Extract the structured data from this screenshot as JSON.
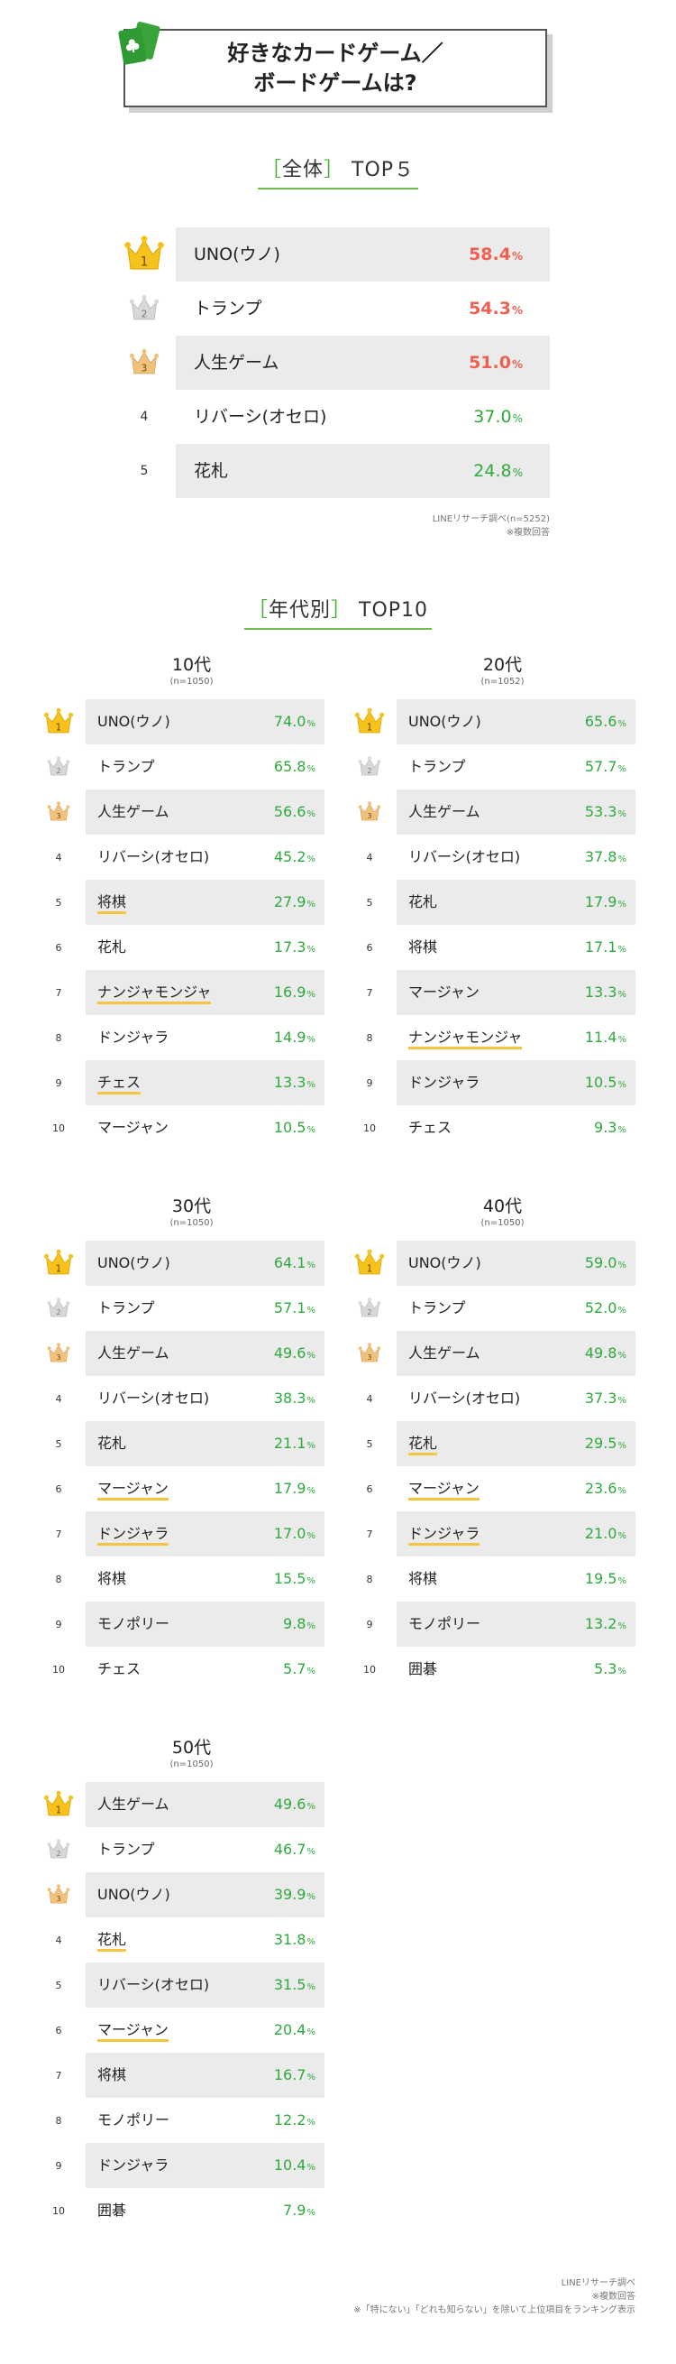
{
  "title": {
    "line1": "好きなカードゲーム／",
    "line2": "ボードゲームは?"
  },
  "colors": {
    "accent_green": "#43b02a",
    "highlight_red": "#f06050",
    "underline_yellow": "#f4c542",
    "row_gray": "#ebebeb"
  },
  "overall": {
    "heading_bracket_open": "［",
    "heading_label": "全体",
    "heading_bracket_close": "］",
    "heading_suffix": "TOP５",
    "note_source": "LINEリサーチ調べ(n=5252)",
    "note_multi": "※複数回答"
  },
  "by_age": {
    "heading_bracket_open": "［",
    "heading_label": "年代別",
    "heading_bracket_close": "］",
    "heading_suffix": "TOP10"
  },
  "footer": {
    "source": "LINEリサーチ調べ",
    "multi": "※複数回答",
    "exclusion": "※「特にない」「どれも知らない」を除いて上位項目をランキング表示"
  },
  "chart_data": [
    {
      "type": "table",
      "title": "全体 TOP５",
      "unit": "%",
      "ranks": [
        "1",
        "2",
        "3",
        "4",
        "5"
      ],
      "categories": [
        "UNO(ウノ)",
        "トランプ",
        "人生ゲーム",
        "リバーシ(オセロ)",
        "花札"
      ],
      "values": [
        58.4,
        54.3,
        51.0,
        37.0,
        24.8
      ],
      "values_text": [
        "58.4",
        "54.3",
        "51.0",
        "37.0",
        "24.8"
      ]
    },
    {
      "type": "table",
      "title": "10代",
      "n": "(n=1050)",
      "unit": "%",
      "ranks": [
        "1",
        "2",
        "3",
        "4",
        "5",
        "6",
        "7",
        "8",
        "9",
        "10"
      ],
      "categories": [
        "UNO(ウノ)",
        "トランプ",
        "人生ゲーム",
        "リバーシ(オセロ)",
        "将棋",
        "花札",
        "ナンジャモンジャ",
        "ドンジャラ",
        "チェス",
        "マージャン"
      ],
      "values": [
        74.0,
        65.8,
        56.6,
        45.2,
        27.9,
        17.3,
        16.9,
        14.9,
        13.3,
        10.5
      ],
      "values_text": [
        "74.0",
        "65.8",
        "56.6",
        "45.2",
        "27.9",
        "17.3",
        "16.9",
        "14.9",
        "13.3",
        "10.5"
      ],
      "underlined": [
        false,
        false,
        false,
        false,
        true,
        false,
        true,
        false,
        true,
        false
      ]
    },
    {
      "type": "table",
      "title": "20代",
      "n": "(n=1052)",
      "unit": "%",
      "ranks": [
        "1",
        "2",
        "3",
        "4",
        "5",
        "6",
        "7",
        "8",
        "9",
        "10"
      ],
      "categories": [
        "UNO(ウノ)",
        "トランプ",
        "人生ゲーム",
        "リバーシ(オセロ)",
        "花札",
        "将棋",
        "マージャン",
        "ナンジャモンジャ",
        "ドンジャラ",
        "チェス"
      ],
      "values": [
        65.6,
        57.7,
        53.3,
        37.8,
        17.9,
        17.1,
        13.3,
        11.4,
        10.5,
        9.3
      ],
      "values_text": [
        "65.6",
        "57.7",
        "53.3",
        "37.8",
        "17.9",
        "17.1",
        "13.3",
        "11.4",
        "10.5",
        "9.3"
      ],
      "underlined": [
        false,
        false,
        false,
        false,
        false,
        false,
        false,
        true,
        false,
        false
      ]
    },
    {
      "type": "table",
      "title": "30代",
      "n": "(n=1050)",
      "unit": "%",
      "ranks": [
        "1",
        "2",
        "3",
        "4",
        "5",
        "6",
        "7",
        "8",
        "9",
        "10"
      ],
      "categories": [
        "UNO(ウノ)",
        "トランプ",
        "人生ゲーム",
        "リバーシ(オセロ)",
        "花札",
        "マージャン",
        "ドンジャラ",
        "将棋",
        "モノポリー",
        "チェス"
      ],
      "values": [
        64.1,
        57.1,
        49.6,
        38.3,
        21.1,
        17.9,
        17.0,
        15.5,
        9.8,
        5.7
      ],
      "values_text": [
        "64.1",
        "57.1",
        "49.6",
        "38.3",
        "21.1",
        "17.9",
        "17.0",
        "15.5",
        "9.8",
        "5.7"
      ],
      "underlined": [
        false,
        false,
        false,
        false,
        false,
        true,
        true,
        false,
        false,
        false
      ]
    },
    {
      "type": "table",
      "title": "40代",
      "n": "(n=1050)",
      "unit": "%",
      "ranks": [
        "1",
        "2",
        "3",
        "4",
        "5",
        "6",
        "7",
        "8",
        "9",
        "10"
      ],
      "categories": [
        "UNO(ウノ)",
        "トランプ",
        "人生ゲーム",
        "リバーシ(オセロ)",
        "花札",
        "マージャン",
        "ドンジャラ",
        "将棋",
        "モノポリー",
        "囲碁"
      ],
      "values": [
        59.0,
        52.0,
        49.8,
        37.3,
        29.5,
        23.6,
        21.0,
        19.5,
        13.2,
        5.3
      ],
      "values_text": [
        "59.0",
        "52.0",
        "49.8",
        "37.3",
        "29.5",
        "23.6",
        "21.0",
        "19.5",
        "13.2",
        "5.3"
      ],
      "underlined": [
        false,
        false,
        false,
        false,
        true,
        true,
        true,
        false,
        false,
        false
      ]
    },
    {
      "type": "table",
      "title": "50代",
      "n": "(n=1050)",
      "unit": "%",
      "ranks": [
        "1",
        "2",
        "3",
        "4",
        "5",
        "6",
        "7",
        "8",
        "9",
        "10"
      ],
      "categories": [
        "人生ゲーム",
        "トランプ",
        "UNO(ウノ)",
        "花札",
        "リバーシ(オセロ)",
        "マージャン",
        "将棋",
        "モノポリー",
        "ドンジャラ",
        "囲碁"
      ],
      "values": [
        49.6,
        46.7,
        39.9,
        31.8,
        31.5,
        20.4,
        16.7,
        12.2,
        10.4,
        7.9
      ],
      "values_text": [
        "49.6",
        "46.7",
        "39.9",
        "31.8",
        "31.5",
        "20.4",
        "16.7",
        "12.2",
        "10.4",
        "7.9"
      ],
      "underlined": [
        false,
        false,
        false,
        true,
        false,
        true,
        false,
        false,
        false,
        false
      ]
    }
  ]
}
